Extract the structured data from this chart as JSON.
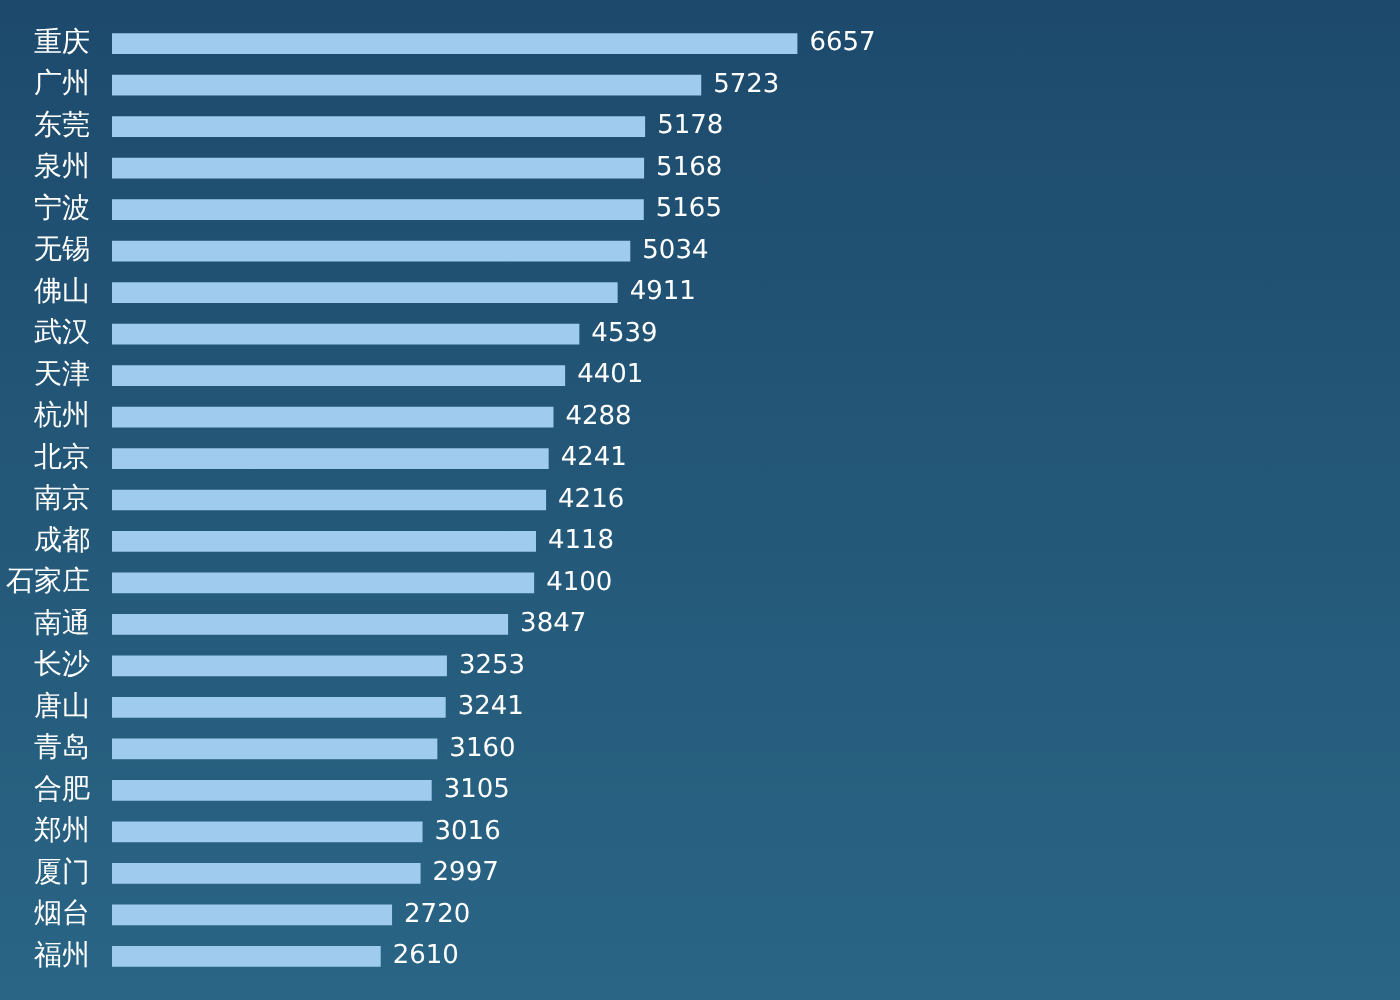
{
  "chart_data": {
    "type": "bar",
    "orientation": "horizontal",
    "categories": [
      "重庆",
      "广州",
      "东莞",
      "泉州",
      "宁波",
      "无锡",
      "佛山",
      "武汉",
      "天津",
      "杭州",
      "北京",
      "南京",
      "成都",
      "石家庄",
      "南通",
      "长沙",
      "唐山",
      "青岛",
      "合肥",
      "郑州",
      "厦门",
      "烟台",
      "福州"
    ],
    "values": [
      6657,
      5723,
      5178,
      5168,
      5165,
      5034,
      4911,
      4539,
      4401,
      4288,
      4241,
      4216,
      4118,
      4100,
      3847,
      3253,
      3241,
      3160,
      3105,
      3016,
      2997,
      2720,
      2610
    ],
    "color": "#9fcbee",
    "data_labels": true
  }
}
